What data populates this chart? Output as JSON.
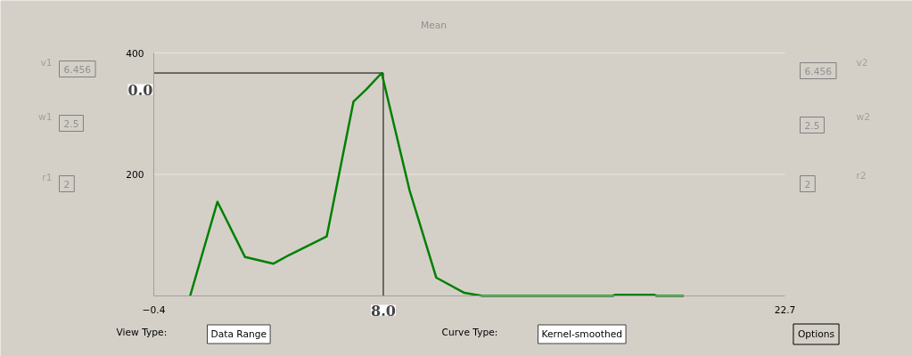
{
  "chart_data": {
    "type": "line",
    "title": "Mean",
    "x": [
      0.93,
      1.93,
      2.94,
      3.97,
      4.54,
      5.93,
      6.91,
      7.38,
      7.94,
      8.96,
      9.94,
      10.97,
      11.63,
      16.4,
      16.5,
      17.9,
      18.0,
      19.0
    ],
    "series": [
      {
        "color": "#008000",
        "values": [
          0,
          155,
          64,
          53,
          67,
          98,
          320,
          340,
          367,
          174,
          30,
          5,
          0,
          0,
          2,
          2,
          0,
          0
        ]
      }
    ],
    "xlim": [
      -0.4,
      22.7
    ],
    "xticks": [
      -0.4,
      22.7
    ],
    "ylim": [
      0,
      400
    ],
    "yticks": [
      {
        "value": 0,
        "label": null
      },
      200,
      400
    ],
    "grid": "y",
    "marker": "none",
    "line_style": "solid",
    "ref_lines": [
      {
        "axis": "x",
        "value": 8.0,
        "label": "8.0",
        "color": "#000000"
      },
      {
        "axis": "y",
        "value": 367,
        "color": "#000000"
      }
    ],
    "annotations": [
      "v1",
      "6.456",
      "w1",
      "2.5",
      "r1",
      "2",
      "v2",
      "6.456",
      "w2",
      "2.5",
      "r2",
      "2",
      "View Type:",
      "Data Range",
      "Curve Type:",
      "Kernel-smoothed",
      "Options",
      "0.0"
    ]
  }
}
